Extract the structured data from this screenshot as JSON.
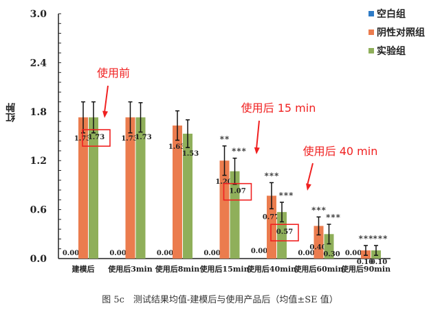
{
  "caption": "图 5c　测试结果均值-建模后与使用产品后（均值±SE 值）",
  "legend": [
    {
      "label": "空白组",
      "color": "#2E7BC6"
    },
    {
      "label": "阴性对照组",
      "color": "#EB7C4E"
    },
    {
      "label": "实验组",
      "color": "#8FAF5A"
    }
  ],
  "annotations": [
    {
      "text": "使用前",
      "target_group": 0,
      "color": "#F02020"
    },
    {
      "text": "使用后 15 min",
      "target_group": 3,
      "color": "#F02020"
    },
    {
      "text": "使用后 40 min",
      "target_group": 4,
      "color": "#F02020"
    }
  ],
  "chart_data": {
    "type": "bar",
    "title": "",
    "xlabel": "",
    "ylabel": "红肿",
    "ylim": [
      0,
      3.0
    ],
    "yticks": [
      0.0,
      0.6,
      1.2,
      1.8,
      2.4,
      3.0
    ],
    "ytick_labels": [
      "0.0",
      "0.6",
      "1.2",
      "1.8",
      "2.4",
      "3.0"
    ],
    "grid": false,
    "legend_position": "top-right",
    "categories": [
      "建模后",
      "使用后3min",
      "使用后8min",
      "使用后15min",
      "使用后40min",
      "使用后60min",
      "使用后90min"
    ],
    "series": [
      {
        "name": "空白组",
        "color": "#2E7BC6",
        "values": [
          0.0,
          0.0,
          0.0,
          0.0,
          0.0,
          0.0,
          0.0
        ],
        "labels": [
          "0.00",
          "0.00",
          "0.00",
          "0.00",
          "0.00",
          "0.00",
          "0.00"
        ],
        "errors": [
          0,
          0,
          0,
          0,
          0,
          0,
          0
        ],
        "significance": [
          "",
          "",
          "",
          "",
          "",
          "",
          ""
        ]
      },
      {
        "name": "阴性对照组",
        "color": "#EB7C4E",
        "values": [
          1.73,
          1.73,
          1.63,
          1.2,
          0.77,
          0.4,
          0.1
        ],
        "labels": [
          "1.73",
          "1.73",
          "1.63",
          "1.20",
          "0.77",
          "0.40",
          "0.10"
        ],
        "errors": [
          0.19,
          0.19,
          0.18,
          0.18,
          0.16,
          0.11,
          0.06
        ],
        "significance": [
          "",
          "",
          "",
          "**",
          "***",
          "***",
          "***"
        ]
      },
      {
        "name": "实验组",
        "color": "#8FAF5A",
        "values": [
          1.73,
          1.73,
          1.53,
          1.07,
          0.57,
          0.3,
          0.1
        ],
        "labels": [
          "1.73",
          "1.73",
          "1.53",
          "1.07",
          "0.57",
          "0.30",
          "0.10"
        ],
        "errors": [
          0.19,
          0.18,
          0.17,
          0.16,
          0.12,
          0.12,
          0.06
        ],
        "significance": [
          "",
          "",
          "",
          "***",
          "***",
          "***",
          "***"
        ]
      }
    ],
    "highlighted_labels": [
      {
        "group": 0,
        "series": 2,
        "label": "1.73"
      },
      {
        "group": 3,
        "series": 2,
        "label": "1.07"
      },
      {
        "group": 4,
        "series": 2,
        "label": "0.57"
      }
    ]
  }
}
